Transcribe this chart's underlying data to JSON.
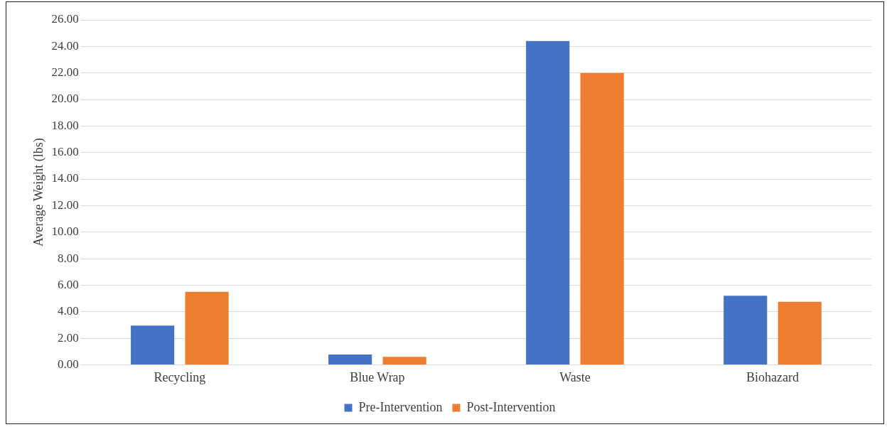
{
  "chart_data": {
    "type": "bar",
    "ylabel": "Average Weight (lbs)",
    "categories": [
      "Recycling",
      "Blue Wrap",
      "Waste",
      "Biohazard"
    ],
    "series": [
      {
        "name": "Pre-Intervention",
        "color": "#4472c4",
        "values": [
          2.95,
          0.77,
          24.4,
          5.2
        ]
      },
      {
        "name": "Post-Intervention",
        "color": "#ed7d31",
        "values": [
          5.5,
          0.6,
          22.0,
          4.75
        ]
      }
    ],
    "ylim": [
      0,
      26
    ],
    "yticks": [
      {
        "value": 0,
        "label": "0.00"
      },
      {
        "value": 2,
        "label": "2.00"
      },
      {
        "value": 4,
        "label": "4.00"
      },
      {
        "value": 6,
        "label": "6.00"
      },
      {
        "value": 8,
        "label": "8.00"
      },
      {
        "value": 10,
        "label": "10.00"
      },
      {
        "value": 12,
        "label": "12.00"
      },
      {
        "value": 14,
        "label": "14.00"
      },
      {
        "value": 16,
        "label": "16.00"
      },
      {
        "value": 18,
        "label": "18.00"
      },
      {
        "value": 20,
        "label": "20.00"
      },
      {
        "value": 22,
        "label": "22.00"
      },
      {
        "value": 24,
        "label": "24.00"
      },
      {
        "value": 26,
        "label": "26.00"
      }
    ],
    "grid": "y",
    "legend": "bottom"
  }
}
